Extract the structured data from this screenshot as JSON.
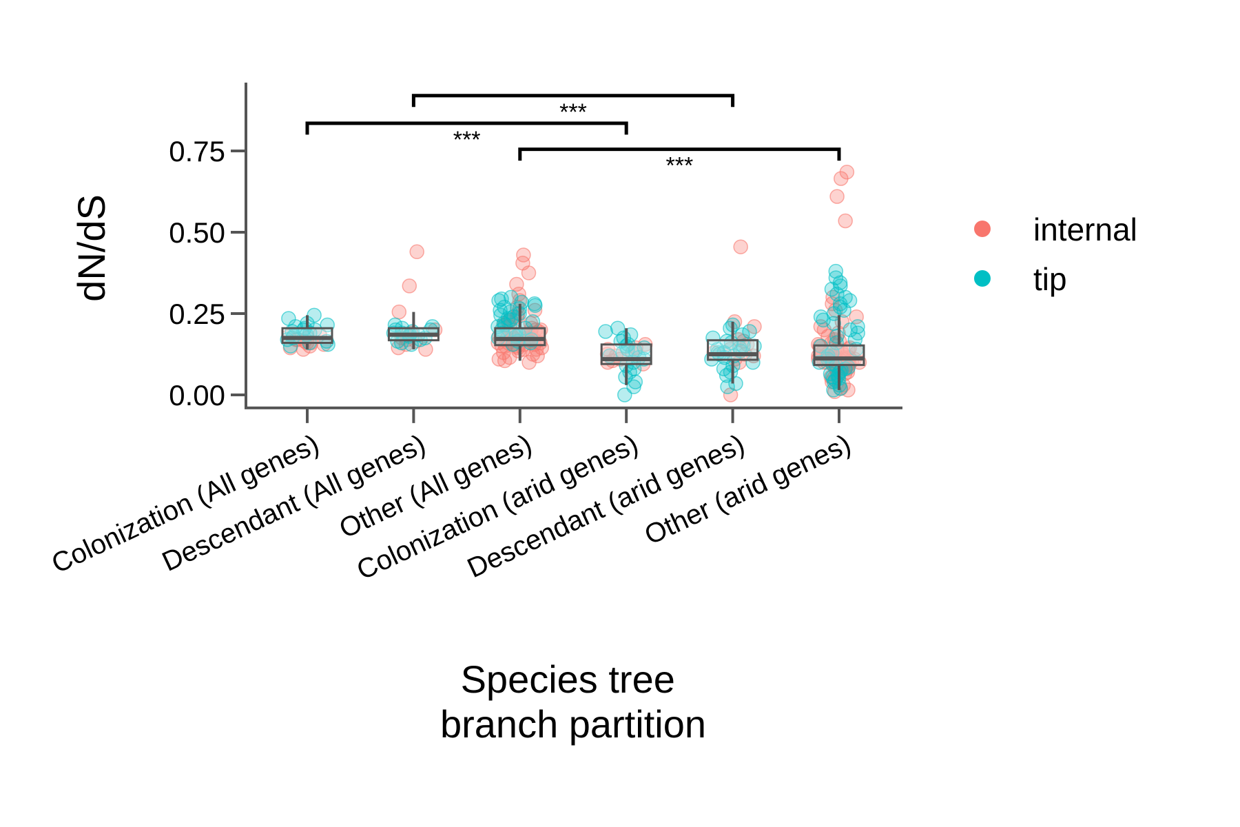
{
  "chart_data": {
    "type": "box",
    "xlabel": [
      "Species tree",
      "branch partition"
    ],
    "ylabel": "dN/dS",
    "ylim": [
      -0.04,
      0.96
    ],
    "yticks": [
      0.0,
      0.25,
      0.5,
      0.75
    ],
    "ytick_labels": [
      "0.00",
      "0.25",
      "0.50",
      "0.75"
    ],
    "categories": [
      "Colonization (All genes)",
      "Descendant (All genes)",
      "Other (All genes)",
      "Colonization (arid genes)",
      "Descendant (arid genes)",
      "Other (arid genes)"
    ],
    "legend": {
      "position": "right",
      "entries": [
        {
          "label": "internal",
          "color": "#F8766D"
        },
        {
          "label": "tip",
          "color": "#00BFC4"
        }
      ]
    },
    "colors": {
      "box": "#555555",
      "axis": "#555555",
      "bracket": "#000000"
    },
    "boxes": [
      {
        "category": "Colonization (All genes)",
        "q1": 0.16,
        "median": 0.175,
        "q3": 0.205,
        "whisker_low": 0.14,
        "whisker_high": 0.245
      },
      {
        "category": "Descendant (All genes)",
        "q1": 0.168,
        "median": 0.185,
        "q3": 0.205,
        "whisker_low": 0.14,
        "whisker_high": 0.255
      },
      {
        "category": "Other (All genes)",
        "q1": 0.153,
        "median": 0.172,
        "q3": 0.205,
        "whisker_low": 0.105,
        "whisker_high": 0.28
      },
      {
        "category": "Colonization (arid genes)",
        "q1": 0.095,
        "median": 0.11,
        "q3": 0.155,
        "whisker_low": 0.03,
        "whisker_high": 0.205
      },
      {
        "category": "Descendant (arid genes)",
        "q1": 0.108,
        "median": 0.125,
        "q3": 0.168,
        "whisker_low": 0.035,
        "whisker_high": 0.225
      },
      {
        "category": "Other (arid genes)",
        "q1": 0.092,
        "median": 0.112,
        "q3": 0.152,
        "whisker_low": 0.015,
        "whisker_high": 0.245
      }
    ],
    "points": [
      {
        "category": "Colonization (All genes)",
        "type": "internal",
        "values": [
          0.16,
          0.15,
          0.145,
          0.17,
          0.165,
          0.175,
          0.18,
          0.155,
          0.16,
          0.14,
          0.17,
          0.185
        ]
      },
      {
        "category": "Colonization (All genes)",
        "type": "tip",
        "values": [
          0.245,
          0.235,
          0.22,
          0.21,
          0.2,
          0.195,
          0.19,
          0.185,
          0.175,
          0.17,
          0.165,
          0.155,
          0.15,
          0.205,
          0.215,
          0.18,
          0.2,
          0.16
        ]
      },
      {
        "category": "Descendant (All genes)",
        "type": "internal",
        "values": [
          0.44,
          0.335,
          0.255,
          0.2,
          0.19,
          0.175,
          0.165,
          0.155,
          0.145,
          0.14,
          0.185,
          0.17
        ]
      },
      {
        "category": "Descendant (All genes)",
        "type": "tip",
        "values": [
          0.215,
          0.21,
          0.205,
          0.2,
          0.195,
          0.19,
          0.185,
          0.18,
          0.175,
          0.17,
          0.165,
          0.16,
          0.155,
          0.2,
          0.19,
          0.185
        ]
      },
      {
        "category": "Other (All genes)",
        "type": "internal",
        "values": [
          0.43,
          0.405,
          0.375,
          0.34,
          0.31,
          0.29,
          0.27,
          0.26,
          0.25,
          0.24,
          0.23,
          0.225,
          0.22,
          0.215,
          0.21,
          0.205,
          0.2,
          0.2,
          0.195,
          0.19,
          0.19,
          0.185,
          0.185,
          0.18,
          0.18,
          0.175,
          0.175,
          0.17,
          0.17,
          0.165,
          0.165,
          0.16,
          0.16,
          0.155,
          0.155,
          0.15,
          0.15,
          0.145,
          0.145,
          0.14,
          0.14,
          0.135,
          0.13,
          0.125,
          0.12,
          0.115,
          0.11,
          0.105,
          0.1,
          0.17,
          0.175,
          0.165,
          0.16,
          0.155,
          0.15
        ]
      },
      {
        "category": "Other (All genes)",
        "type": "tip",
        "values": [
          0.3,
          0.295,
          0.29,
          0.285,
          0.28,
          0.275,
          0.27,
          0.265,
          0.26,
          0.255,
          0.25,
          0.245,
          0.24,
          0.235,
          0.23,
          0.225,
          0.22,
          0.215,
          0.21,
          0.205,
          0.2,
          0.195,
          0.19,
          0.185,
          0.18,
          0.175,
          0.17,
          0.165,
          0.16,
          0.155
        ]
      },
      {
        "category": "Colonization (arid genes)",
        "type": "internal",
        "values": [
          0.155,
          0.145,
          0.13,
          0.12,
          0.11,
          0.1,
          0.095,
          0.14,
          0.125,
          0.105
        ]
      },
      {
        "category": "Colonization (arid genes)",
        "type": "tip",
        "values": [
          0.205,
          0.195,
          0.185,
          0.175,
          0.165,
          0.155,
          0.145,
          0.14,
          0.13,
          0.12,
          0.11,
          0.1,
          0.09,
          0.08,
          0.07,
          0.055,
          0.04,
          0.025,
          0.0,
          0.15,
          0.135,
          0.115
        ]
      },
      {
        "category": "Descendant (arid genes)",
        "type": "internal",
        "values": [
          0.455,
          0.225,
          0.21,
          0.17,
          0.155,
          0.14,
          0.13,
          0.12,
          0.11,
          0.1,
          0.0,
          0.165,
          0.125
        ]
      },
      {
        "category": "Descendant (arid genes)",
        "type": "tip",
        "values": [
          0.215,
          0.205,
          0.195,
          0.185,
          0.175,
          0.165,
          0.16,
          0.15,
          0.145,
          0.14,
          0.135,
          0.13,
          0.125,
          0.12,
          0.115,
          0.11,
          0.1,
          0.09,
          0.08,
          0.07,
          0.06,
          0.035,
          0.025,
          0.15,
          0.13
        ]
      },
      {
        "category": "Other (arid genes)",
        "type": "internal",
        "values": [
          0.685,
          0.665,
          0.61,
          0.535,
          0.3,
          0.28,
          0.26,
          0.24,
          0.225,
          0.21,
          0.2,
          0.19,
          0.18,
          0.17,
          0.165,
          0.16,
          0.155,
          0.15,
          0.145,
          0.14,
          0.135,
          0.13,
          0.13,
          0.125,
          0.125,
          0.12,
          0.12,
          0.115,
          0.115,
          0.11,
          0.11,
          0.105,
          0.105,
          0.1,
          0.1,
          0.095,
          0.095,
          0.09,
          0.09,
          0.085,
          0.08,
          0.075,
          0.07,
          0.065,
          0.06,
          0.055,
          0.05,
          0.04,
          0.03,
          0.02,
          0.015,
          0.01,
          0.12,
          0.11,
          0.1,
          0.09,
          0.115,
          0.105,
          0.095,
          0.085,
          0.125,
          0.13,
          0.14,
          0.1,
          0.11
        ]
      },
      {
        "category": "Other (arid genes)",
        "type": "tip",
        "values": [
          0.38,
          0.36,
          0.345,
          0.335,
          0.325,
          0.31,
          0.3,
          0.29,
          0.28,
          0.27,
          0.26,
          0.25,
          0.24,
          0.23,
          0.22,
          0.21,
          0.2,
          0.19,
          0.18,
          0.17,
          0.16,
          0.15,
          0.14,
          0.13,
          0.12,
          0.11,
          0.1,
          0.095,
          0.09,
          0.085,
          0.08,
          0.075,
          0.07,
          0.065,
          0.06,
          0.055,
          0.05,
          0.045,
          0.04,
          0.03,
          0.02,
          0.015
        ]
      }
    ],
    "significance": [
      {
        "from": "Colonization (All genes)",
        "to": "Colonization (arid genes)",
        "label": "***",
        "y": 0.835
      },
      {
        "from": "Descendant (All genes)",
        "to": "Descendant (arid genes)",
        "label": "***",
        "y": 0.92
      },
      {
        "from": "Other (All genes)",
        "to": "Other (arid genes)",
        "label": "***",
        "y": 0.755
      }
    ]
  }
}
